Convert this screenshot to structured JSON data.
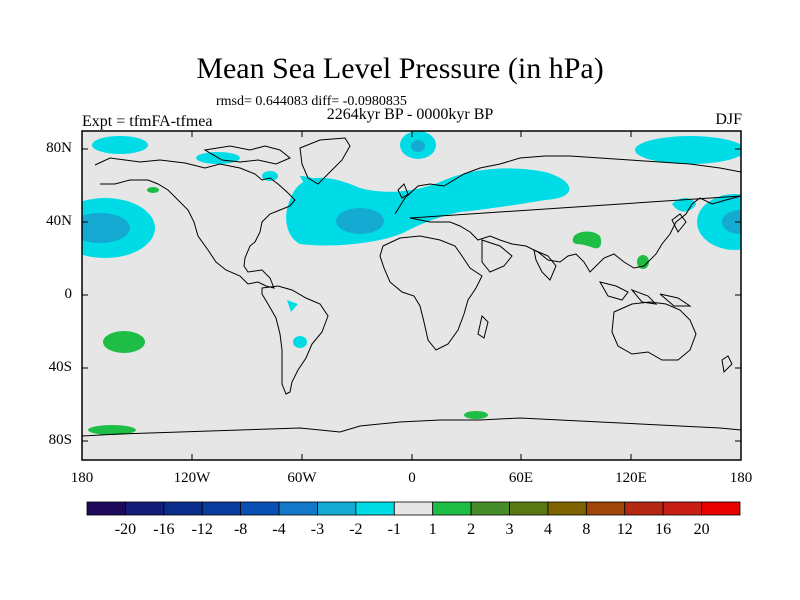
{
  "title": "Mean Sea Level Pressure (in hPa)",
  "stats": "rmsd= 0.644083 diff= -0.0980835",
  "period": "2264kyr BP - 0000kyr BP",
  "expt": "Expt = tfmFA-tfmea",
  "season": "DJF",
  "lat_labels": [
    "80N",
    "40N",
    "0",
    "40S",
    "80S"
  ],
  "lon_labels": [
    "180",
    "120W",
    "60W",
    "0",
    "60E",
    "120E",
    "180"
  ],
  "colorbar": {
    "labels": [
      "-20",
      "-16",
      "-12",
      "-8",
      "-4",
      "-3",
      "-2",
      "-1",
      "1",
      "2",
      "3",
      "4",
      "8",
      "12",
      "16",
      "20"
    ],
    "colors": [
      "#1e0a5a",
      "#141e78",
      "#0a2d8c",
      "#0a3ca0",
      "#0a50b4",
      "#1478c8",
      "#14aad2",
      "#00dce6",
      "#e6e6e6",
      "#1ebe46",
      "#468c28",
      "#5a7814",
      "#7d6400",
      "#a0460a",
      "#b42814",
      "#c81e14",
      "#e60000"
    ]
  },
  "colors": {
    "background": "#e6e6e6",
    "cyan": "#00dce6",
    "blue": "#14aad2",
    "green": "#1ebe46"
  }
}
